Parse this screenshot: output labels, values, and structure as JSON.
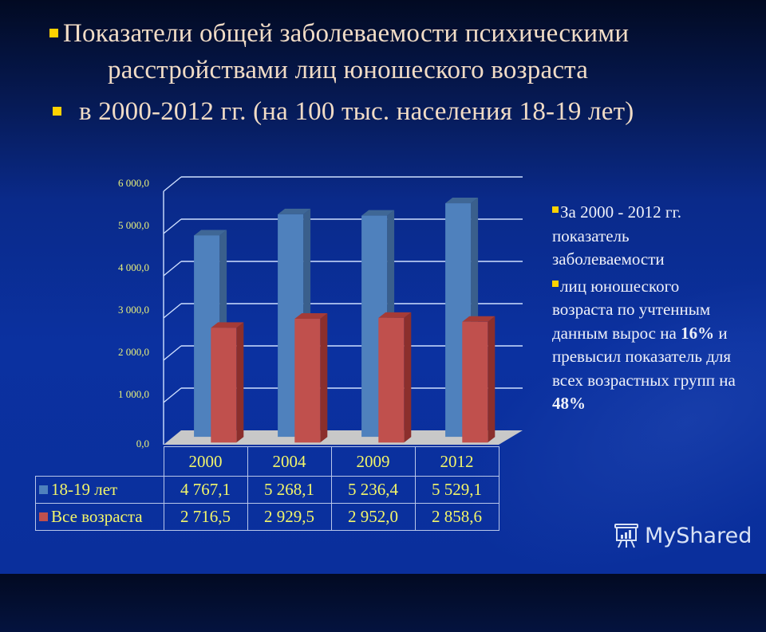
{
  "title": {
    "line1": "Показатели общей заболеваемости психическими",
    "line2": "расстройствами лиц юношеского возраста",
    "line3": "в 2000-2012 гг. (на 100 тыс. населения 18-19 лет)"
  },
  "colors": {
    "bullet": "#ffd200",
    "series_1": "#4f81bd",
    "series_2": "#c0504d",
    "axis_text": "#e8f07a",
    "title_text": "#f1dcc6"
  },
  "chart_data": {
    "type": "bar",
    "title": "Показатели общей заболеваемости психическими расстройствами лиц юношеского возраста в 2000-2012 гг. (на 100 тыс. населения 18-19 лет)",
    "categories": [
      "2000",
      "2004",
      "2009",
      "2012"
    ],
    "series": [
      {
        "name": "18-19 лет",
        "values": [
          4767.1,
          5268.1,
          5236.4,
          5529.1
        ],
        "color": "#4f81bd"
      },
      {
        "name": "Все возраста",
        "values": [
          2716.5,
          2929.5,
          2952.0,
          2858.6
        ],
        "color": "#c0504d"
      }
    ],
    "ylim": [
      0,
      6000
    ],
    "yticks": [
      "0,0",
      "1 000,0",
      "2 000,0",
      "3 000,0",
      "4 000,0",
      "5 000,0",
      "6 000,0"
    ],
    "xlabel": "",
    "ylabel": "",
    "grid": true,
    "legend_position": "data-table",
    "style": "3d-clustered-column"
  },
  "table": {
    "headers": [
      "2000",
      "2004",
      "2009",
      "2012"
    ],
    "rows": [
      {
        "label": "18-19 лет",
        "values": [
          "4 767,1",
          "5 268,1",
          "5 236,4",
          "5 529,1"
        ]
      },
      {
        "label": "Все возраста",
        "values": [
          "2 716,5",
          "2 929,5",
          "2 952,0",
          "2 858,6"
        ]
      }
    ]
  },
  "side_note": {
    "p1": "За 2000 - 2012 гг. показатель заболеваемости",
    "p2_a": "лиц юношеского возраста по учтенным данным вырос на ",
    "p2_b": "16%",
    "p2_c": " и превысил показатель для всех возрастных групп на ",
    "p2_d": "48%"
  },
  "watermark": {
    "text": "MyShared"
  }
}
